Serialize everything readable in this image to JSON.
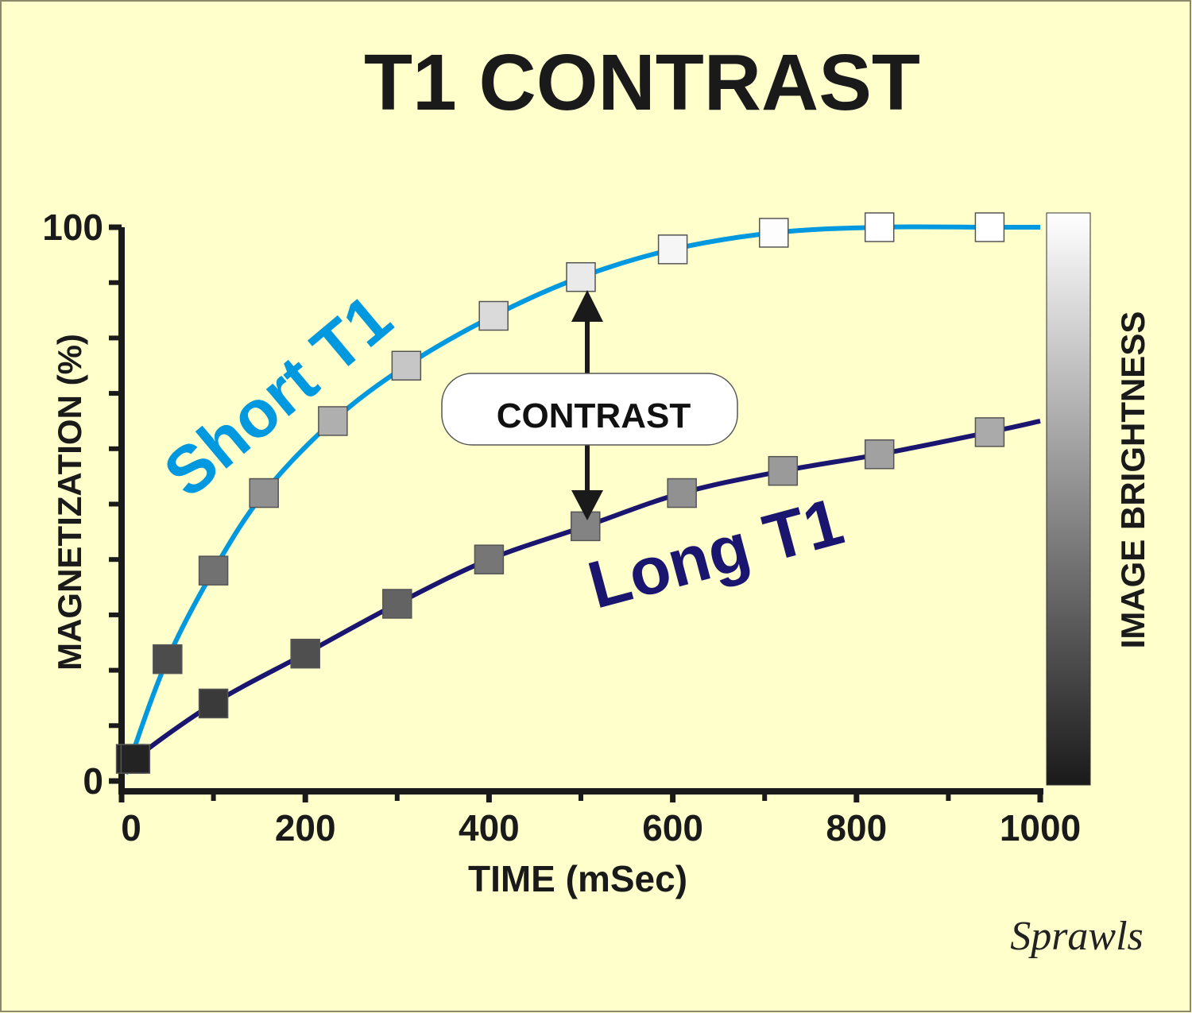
{
  "chart_data": {
    "type": "line",
    "title": "T1 CONTRAST",
    "xlabel": "TIME (mSec)",
    "ylabel": "MAGNETIZATION (%)",
    "colorbar_label": "IMAGE BRIGHTNESS",
    "xlim": [
      0,
      1000
    ],
    "ylim": [
      0,
      100
    ],
    "x_tick_labels": [
      {
        "value": 0,
        "label": "0"
      },
      {
        "value": 200,
        "label": "200"
      },
      {
        "value": 400,
        "label": "400"
      },
      {
        "value": 600,
        "label": "600"
      },
      {
        "value": 800,
        "label": "800"
      },
      {
        "value": 1000,
        "label": "1000"
      }
    ],
    "x_minor_ticks": [
      100,
      300,
      500,
      700,
      900
    ],
    "y_tick_labels": [
      {
        "value": 0,
        "label": "0"
      },
      {
        "value": 100,
        "label": "100"
      }
    ],
    "y_minor_ticks": [
      10,
      20,
      30,
      40,
      50,
      60,
      70,
      80,
      90
    ],
    "series": [
      {
        "name": "Short T1",
        "color": "#0099e0",
        "marker_fill": "by-brightness",
        "points": [
          {
            "x": 10,
            "y": 4
          },
          {
            "x": 50,
            "y": 22
          },
          {
            "x": 100,
            "y": 38
          },
          {
            "x": 155,
            "y": 52
          },
          {
            "x": 230,
            "y": 65
          },
          {
            "x": 310,
            "y": 75
          },
          {
            "x": 405,
            "y": 84
          },
          {
            "x": 500,
            "y": 91
          },
          {
            "x": 600,
            "y": 96
          },
          {
            "x": 710,
            "y": 99
          },
          {
            "x": 825,
            "y": 100
          },
          {
            "x": 945,
            "y": 100
          }
        ]
      },
      {
        "name": "Long T1",
        "color": "#1a1670",
        "marker_fill": "by-brightness",
        "points": [
          {
            "x": 15,
            "y": 4
          },
          {
            "x": 100,
            "y": 14
          },
          {
            "x": 200,
            "y": 23
          },
          {
            "x": 300,
            "y": 32
          },
          {
            "x": 400,
            "y": 40
          },
          {
            "x": 505,
            "y": 46
          },
          {
            "x": 610,
            "y": 52
          },
          {
            "x": 720,
            "y": 56
          },
          {
            "x": 825,
            "y": 59
          },
          {
            "x": 945,
            "y": 63
          }
        ]
      }
    ],
    "annotations": [
      {
        "text": "CONTRAST",
        "type": "double-arrow",
        "x": 500,
        "y_from": 45,
        "y_to": 90
      }
    ],
    "colorbar": {
      "from_color": "#1a1a1a",
      "to_color": "#ffffff"
    },
    "signature": "Sprawls"
  }
}
